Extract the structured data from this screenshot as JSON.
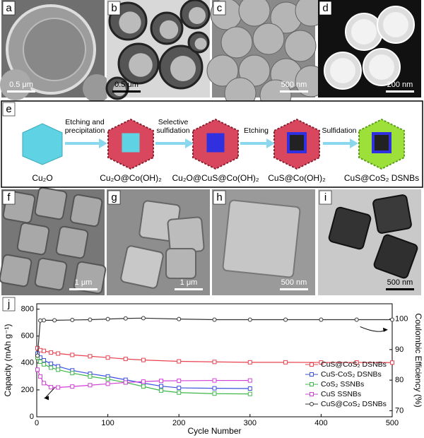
{
  "panels": [
    {
      "label": "a",
      "scale_bar": "0.5 μm"
    },
    {
      "label": "b",
      "scale_bar": "0.5 μm"
    },
    {
      "label": "c",
      "scale_bar": "500 nm"
    },
    {
      "label": "d",
      "scale_bar": "200 nm"
    },
    {
      "label": "f",
      "scale_bar": "1 μm"
    },
    {
      "label": "g",
      "scale_bar": "1 μm"
    },
    {
      "label": "h",
      "scale_bar": "500 nm"
    },
    {
      "label": "i",
      "scale_bar": "500 nm"
    }
  ],
  "scheme": {
    "label": "e",
    "stages": [
      "Cu₂O",
      "Cu₂O@Co(OH)₂",
      "Cu₂O@CuS@Co(OH)₂",
      "CuS@Co(OH)₂",
      "CuS@CoS₂ DSNBs"
    ],
    "steps": [
      [
        "Etching and",
        "precipitation"
      ],
      [
        "Selective",
        "sulfidation"
      ],
      [
        "Etching"
      ],
      [
        "Sulfidation"
      ]
    ]
  },
  "chart_label": "j",
  "chart_data": {
    "type": "line",
    "xlabel": "Cycle Number",
    "ylabel": "Capacity (mAh g⁻¹)",
    "y2label": "Coulombic Efficiency (%)",
    "xlim": [
      0,
      500
    ],
    "xticks": [
      0,
      100,
      200,
      300,
      400,
      500
    ],
    "ylim": [
      0,
      840
    ],
    "yticks": [
      0,
      200,
      400,
      600,
      800
    ],
    "y2lim": [
      68,
      105
    ],
    "y2ticks": [
      70,
      80,
      90,
      100
    ],
    "series": [
      {
        "name": "CuS@CoS₂ DSNBs",
        "color": "#e8424f",
        "marker": "square",
        "x": [
          1,
          5,
          10,
          20,
          30,
          50,
          75,
          100,
          125,
          150,
          200,
          250,
          300,
          350,
          400,
          450,
          500
        ],
        "values": [
          510,
          495,
          490,
          478,
          470,
          460,
          450,
          440,
          430,
          422,
          412,
          408,
          405,
          405,
          404,
          404,
          403
        ]
      },
      {
        "name": "CuS-CoS₂ DSNBs",
        "color": "#3b4fe0",
        "marker": "square",
        "x": [
          1,
          5,
          10,
          20,
          30,
          50,
          75,
          100,
          125,
          150,
          175,
          200,
          250,
          300
        ],
        "values": [
          470,
          440,
          420,
          395,
          375,
          345,
          320,
          300,
          275,
          250,
          228,
          215,
          212,
          210
        ]
      },
      {
        "name": "CoS₂ SSNBs",
        "color": "#3fb84a",
        "marker": "square",
        "x": [
          1,
          5,
          10,
          20,
          30,
          50,
          75,
          100,
          125,
          150,
          175,
          200,
          250,
          300
        ],
        "values": [
          440,
          410,
          390,
          365,
          350,
          325,
          300,
          280,
          255,
          225,
          195,
          180,
          172,
          170
        ]
      },
      {
        "name": "CuS SSNBs",
        "color": "#d23fd6",
        "marker": "square",
        "x": [
          1,
          5,
          10,
          20,
          30,
          50,
          75,
          100,
          125,
          150,
          175,
          200,
          250,
          300
        ],
        "values": [
          350,
          300,
          250,
          220,
          218,
          225,
          235,
          245,
          255,
          262,
          267,
          268,
          270,
          270
        ]
      },
      {
        "name": "CuS@CoS₂ DSNBs",
        "color": "#333333",
        "marker": "circle",
        "axis": "y2",
        "x": [
          1,
          5,
          10,
          25,
          50,
          75,
          100,
          125,
          150,
          200,
          250,
          300,
          350,
          400,
          450,
          500
        ],
        "values": [
          88,
          99.5,
          99.6,
          99.6,
          99.7,
          99.8,
          100,
          100.2,
          100.3,
          100,
          99.8,
          99.8,
          99.8,
          99.8,
          99.8,
          99.8
        ]
      }
    ]
  }
}
